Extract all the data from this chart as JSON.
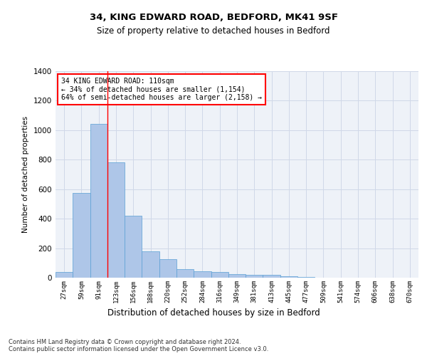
{
  "title1": "34, KING EDWARD ROAD, BEDFORD, MK41 9SF",
  "title2": "Size of property relative to detached houses in Bedford",
  "xlabel": "Distribution of detached houses by size in Bedford",
  "ylabel": "Number of detached properties",
  "categories": [
    "27sqm",
    "59sqm",
    "91sqm",
    "123sqm",
    "156sqm",
    "188sqm",
    "220sqm",
    "252sqm",
    "284sqm",
    "316sqm",
    "349sqm",
    "381sqm",
    "413sqm",
    "445sqm",
    "477sqm",
    "509sqm",
    "541sqm",
    "574sqm",
    "606sqm",
    "638sqm",
    "670sqm"
  ],
  "bar_heights": [
    40,
    575,
    1045,
    780,
    420,
    180,
    125,
    60,
    45,
    40,
    25,
    20,
    20,
    10,
    5,
    0,
    0,
    0,
    0,
    0,
    0
  ],
  "bar_color": "#aec6e8",
  "bar_edge_color": "#5a9fd4",
  "grid_color": "#d0d8e8",
  "annotation_text": "34 KING EDWARD ROAD: 110sqm\n← 34% of detached houses are smaller (1,154)\n64% of semi-detached houses are larger (2,158) →",
  "annotation_box_color": "white",
  "annotation_box_edge": "red",
  "vline_x_index": 2,
  "vline_color": "red",
  "ylim": [
    0,
    1400
  ],
  "yticks": [
    0,
    200,
    400,
    600,
    800,
    1000,
    1200,
    1400
  ],
  "footer": "Contains HM Land Registry data © Crown copyright and database right 2024.\nContains public sector information licensed under the Open Government Licence v3.0.",
  "bg_color": "#eef2f8"
}
